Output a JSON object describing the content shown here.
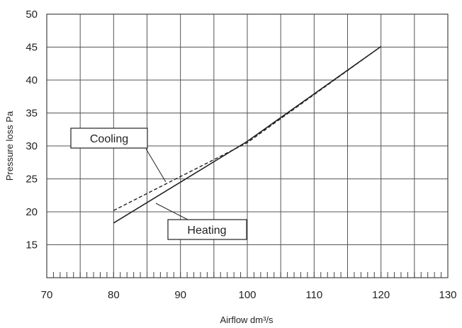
{
  "chart_data": {
    "type": "line",
    "title": "",
    "xlabel": "Airflow dm³/s",
    "ylabel": "Pressure loss Pa",
    "xlim": [
      70,
      130
    ],
    "ylim": [
      10,
      50
    ],
    "x_ticks": [
      70,
      80,
      90,
      100,
      110,
      120,
      130
    ],
    "y_ticks": [
      15,
      20,
      25,
      30,
      35,
      40,
      45,
      50
    ],
    "x_ticks_labels": [
      "70",
      "80",
      "90",
      "100",
      "110",
      "120",
      "130"
    ],
    "y_ticks_labels": [
      "15",
      "20",
      "25",
      "30",
      "35",
      "40",
      "45",
      "50"
    ],
    "grid": true,
    "series": [
      {
        "name": "Cooling",
        "style": "dashed",
        "x": [
          80,
          100,
          120
        ],
        "y": [
          20.2,
          30.5,
          45.1
        ]
      },
      {
        "name": "Heating",
        "style": "solid",
        "x": [
          80,
          100,
          120
        ],
        "y": [
          18.3,
          30.7,
          45.1
        ]
      }
    ]
  }
}
